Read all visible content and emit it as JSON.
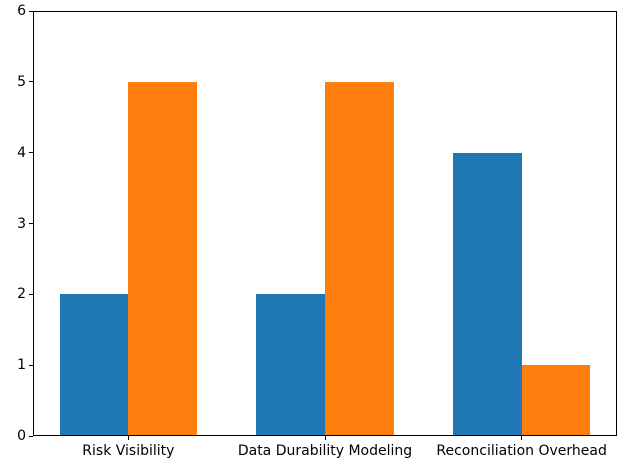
{
  "figure": {
    "background": "#ffffff",
    "spine_color": "#000000",
    "tick_label_color": "#000000"
  },
  "chart_data": {
    "type": "bar",
    "title": "",
    "xlabel": "",
    "ylabel": "",
    "categories": [
      "Risk Visibility",
      "Data Durability Modeling",
      "Reconciliation Overhead"
    ],
    "series": [
      {
        "color_name": "blue",
        "color": "#1f77b4",
        "values": [
          2,
          2,
          4
        ]
      },
      {
        "color_name": "orange",
        "color": "#ff7f0e",
        "values": [
          5,
          5,
          1
        ]
      }
    ],
    "ylim": [
      0,
      6
    ],
    "yticks": [
      0,
      1,
      2,
      3,
      4,
      5,
      6
    ],
    "xlim": [
      -0.485,
      2.485
    ],
    "bar_width": 0.35,
    "grid": false,
    "legend": "none"
  }
}
